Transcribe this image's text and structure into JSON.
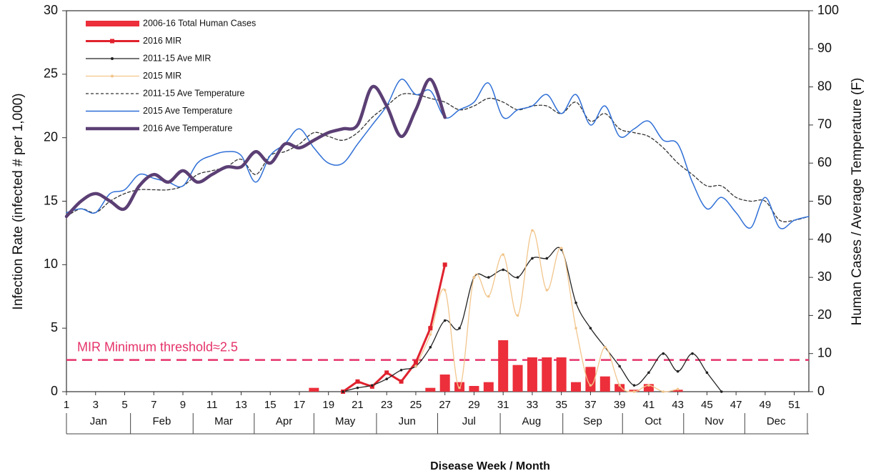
{
  "chart_data": {
    "type": "combo",
    "xlabel": "Disease Week / Month",
    "ylabel": "Infection Rate (infected # per 1,000)",
    "y2label": "Human Cases / Average Temperature (F)",
    "x": [
      1,
      2,
      3,
      4,
      5,
      6,
      7,
      8,
      9,
      10,
      11,
      12,
      13,
      14,
      15,
      16,
      17,
      18,
      19,
      20,
      21,
      22,
      23,
      24,
      25,
      26,
      27,
      28,
      29,
      30,
      31,
      32,
      33,
      34,
      35,
      36,
      37,
      38,
      39,
      40,
      41,
      42,
      43,
      44,
      45,
      46,
      47,
      48,
      49,
      50,
      51,
      52
    ],
    "xlim": [
      1,
      52
    ],
    "xticks": [
      1,
      3,
      5,
      7,
      9,
      11,
      13,
      15,
      17,
      19,
      21,
      23,
      25,
      27,
      29,
      31,
      33,
      35,
      37,
      39,
      41,
      43,
      45,
      47,
      49,
      51
    ],
    "months": [
      "Jan",
      "Feb",
      "Mar",
      "Apr",
      "May",
      "Jun",
      "Jul",
      "Aug",
      "Sep",
      "Oct",
      "Nov",
      "Dec"
    ],
    "month_edges": [
      1,
      5.4,
      9.7,
      13.9,
      18,
      22.3,
      26.5,
      30.8,
      35.1,
      39.2,
      43.4,
      47.6,
      51.9
    ],
    "ylim": [
      0,
      30
    ],
    "yticks": [
      0,
      5,
      10,
      15,
      20,
      25,
      30
    ],
    "y2lim": [
      0,
      100
    ],
    "y2ticks": [
      0,
      10,
      20,
      30,
      40,
      50,
      60,
      70,
      80,
      90,
      100
    ],
    "threshold": {
      "value": 2.5,
      "label": "MIR Minimum threshold≈2.5",
      "color": "#e5336a"
    },
    "series": [
      {
        "name": "2006-16 Total Human Cases",
        "kind": "bar",
        "axis": "y2",
        "color": "#ec2f3b",
        "values": [
          null,
          null,
          null,
          null,
          null,
          null,
          null,
          null,
          null,
          null,
          null,
          null,
          null,
          null,
          null,
          null,
          null,
          1,
          null,
          null,
          null,
          null,
          null,
          null,
          null,
          1,
          4.5,
          2.5,
          1.5,
          2.5,
          13.5,
          7,
          9,
          9,
          9,
          2.5,
          6.5,
          4,
          2,
          0.5,
          2,
          null,
          0.5,
          null,
          null,
          null,
          null,
          null,
          null,
          null,
          null,
          null
        ]
      },
      {
        "name": "2016 MIR",
        "kind": "line",
        "color": "#e0222e",
        "width": 3,
        "marker": "square",
        "values": [
          null,
          null,
          null,
          null,
          null,
          null,
          null,
          null,
          null,
          null,
          null,
          null,
          null,
          null,
          null,
          null,
          null,
          null,
          null,
          0,
          0.8,
          0.4,
          1.5,
          0.8,
          2.3,
          5,
          10,
          null,
          null,
          null,
          null,
          null,
          null,
          null,
          null,
          null,
          null,
          null,
          null,
          null,
          null,
          null,
          null,
          null,
          null,
          null,
          null,
          null,
          null,
          null,
          null,
          null
        ]
      },
      {
        "name": "2011-15 Ave MIR",
        "kind": "line",
        "color": "#222222",
        "width": 1.3,
        "marker": "dot",
        "smooth": true,
        "values": [
          null,
          null,
          null,
          null,
          null,
          null,
          null,
          null,
          null,
          null,
          null,
          null,
          null,
          null,
          null,
          null,
          null,
          null,
          null,
          0,
          0.3,
          0.5,
          1,
          1.7,
          2,
          3.5,
          5.6,
          5,
          9,
          9,
          9.6,
          9,
          10.5,
          10.5,
          11.2,
          7,
          5,
          3.5,
          2,
          0.5,
          1.5,
          3,
          1.6,
          3,
          1.5,
          0,
          null,
          null,
          null,
          null,
          null,
          null
        ]
      },
      {
        "name": "2015 MIR",
        "kind": "line",
        "color": "#f2c58c",
        "width": 1.3,
        "marker": "dot",
        "smooth": true,
        "values": [
          null,
          null,
          null,
          null,
          null,
          null,
          null,
          null,
          null,
          null,
          null,
          null,
          null,
          null,
          null,
          null,
          null,
          null,
          null,
          null,
          null,
          null,
          null,
          null,
          2,
          4.5,
          8,
          0.3,
          9,
          7.5,
          10.8,
          6,
          12.7,
          8,
          11.3,
          5,
          0.5,
          3.5,
          0.5,
          0,
          0.5,
          0,
          0.2,
          null,
          null,
          null,
          null,
          null,
          null,
          null,
          null,
          null
        ]
      },
      {
        "name": "2011-15 Ave Temperature",
        "kind": "line",
        "axis": "y2",
        "color": "#333333",
        "width": 1.3,
        "dash": "4 3",
        "smooth": true,
        "values": [
          46,
          48,
          47,
          50,
          52,
          53,
          53,
          53,
          54,
          57,
          58,
          59,
          61,
          57,
          62,
          63,
          65,
          68,
          67,
          66,
          68,
          72,
          75,
          78,
          78,
          77,
          76,
          74,
          75,
          77,
          76,
          74,
          75,
          75,
          73,
          76,
          71,
          73,
          69,
          68,
          67,
          64,
          60,
          57,
          54,
          54,
          51,
          50,
          50,
          45,
          45,
          46
        ]
      },
      {
        "name": "2015 Ave Temperature",
        "kind": "line",
        "axis": "y2",
        "color": "#2f6fd6",
        "width": 1.5,
        "smooth": true,
        "values": [
          47,
          48,
          47,
          52,
          53,
          57,
          56,
          55,
          54,
          60,
          62,
          63,
          62,
          55,
          62,
          65,
          69,
          64,
          60,
          60,
          65,
          70,
          75,
          82,
          78,
          79,
          72,
          74,
          76,
          81,
          72,
          74,
          75,
          78,
          73,
          78,
          70,
          75,
          67,
          69,
          71,
          66,
          65,
          55,
          48,
          51,
          47,
          43,
          51,
          43,
          45,
          46
        ]
      },
      {
        "name": "2016 Ave Temperature",
        "kind": "line",
        "axis": "y2",
        "color": "#5b3f74",
        "width": 4.5,
        "smooth": true,
        "values": [
          46,
          50,
          52,
          50,
          48,
          54,
          57,
          55,
          58,
          55,
          57,
          59,
          59,
          63,
          60,
          65,
          64,
          66,
          68,
          69,
          70,
          80,
          75,
          67,
          74,
          82,
          72,
          null,
          null,
          null,
          null,
          null,
          null,
          null,
          null,
          null,
          null,
          null,
          null,
          null,
          null,
          null,
          null,
          null,
          null,
          null,
          null,
          null,
          null,
          null,
          null,
          null
        ]
      }
    ]
  }
}
